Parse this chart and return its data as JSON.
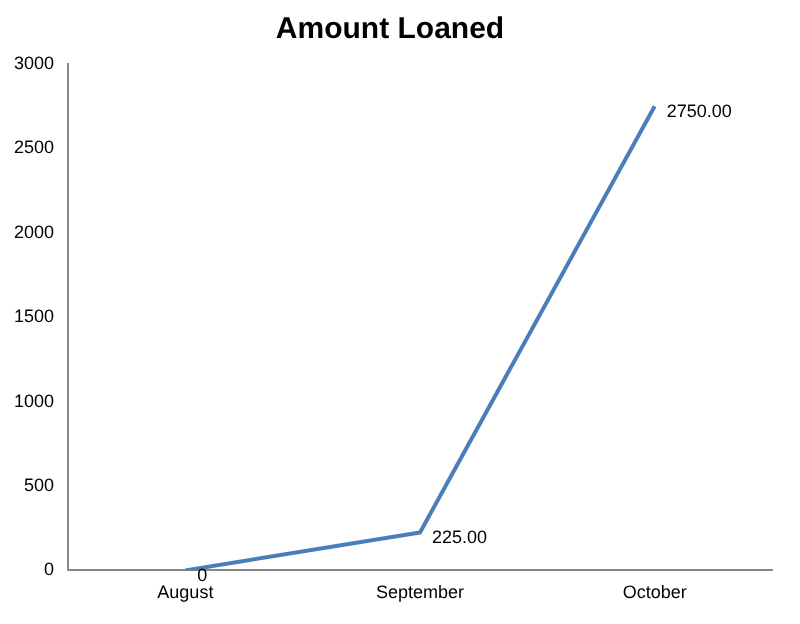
{
  "chart_data": {
    "type": "line",
    "title": "Amount Loaned",
    "categories": [
      "August",
      "September",
      "October"
    ],
    "series": [
      {
        "color": "#4a7ebb",
        "values": [
          0,
          225,
          2750
        ],
        "value_labels": [
          "0",
          "225.00",
          "2750.00"
        ]
      }
    ],
    "ylim": [
      0,
      3000
    ],
    "yticks": [
      0,
      500,
      1000,
      1500,
      2000,
      2500,
      3000
    ],
    "grid": false,
    "legend": false,
    "marker": "none",
    "line_style": "solid"
  }
}
